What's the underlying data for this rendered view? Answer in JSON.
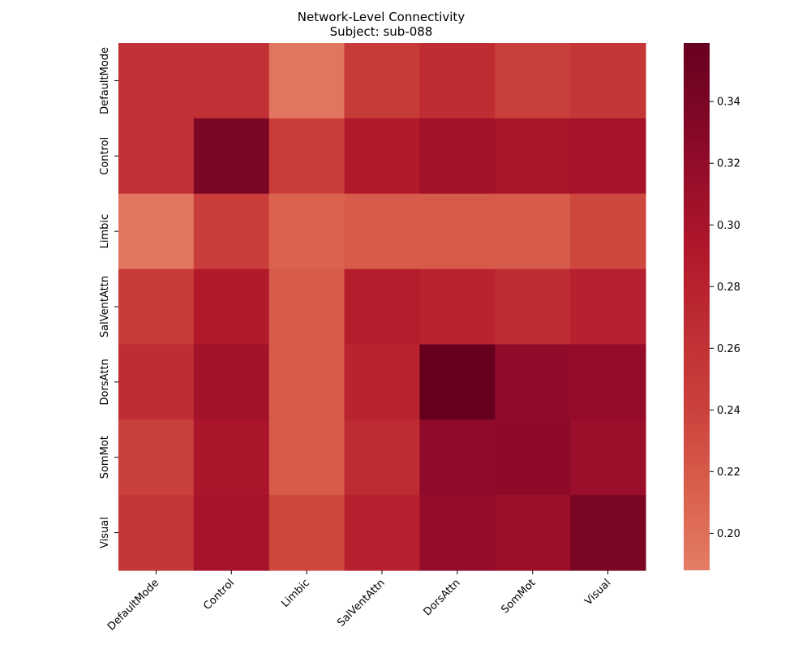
{
  "chart_data": {
    "type": "heatmap",
    "title": "Network-Level Connectivity",
    "subtitle": "Subject: sub-088",
    "xlabel": "",
    "ylabel": "",
    "x_categories": [
      "DefaultMode",
      "Control",
      "Limbic",
      "SalVentAttn",
      "DorsAttn",
      "SomMot",
      "Visual"
    ],
    "y_categories": [
      "DefaultMode",
      "Control",
      "Limbic",
      "SalVentAttn",
      "DorsAttn",
      "SomMot",
      "Visual"
    ],
    "values": [
      [
        0.262,
        0.262,
        0.195,
        0.25,
        0.266,
        0.243,
        0.253
      ],
      [
        0.262,
        0.339,
        0.245,
        0.29,
        0.305,
        0.298,
        0.302
      ],
      [
        0.195,
        0.245,
        0.212,
        0.218,
        0.218,
        0.218,
        0.234
      ],
      [
        0.25,
        0.29,
        0.218,
        0.285,
        0.278,
        0.268,
        0.281
      ],
      [
        0.266,
        0.305,
        0.218,
        0.278,
        0.359,
        0.322,
        0.318
      ],
      [
        0.243,
        0.298,
        0.218,
        0.268,
        0.322,
        0.324,
        0.312
      ],
      [
        0.253,
        0.302,
        0.234,
        0.281,
        0.318,
        0.312,
        0.34
      ]
    ],
    "colorbar": {
      "vmin": 0.188,
      "vmax": 0.359,
      "ticks": [
        0.2,
        0.22,
        0.24,
        0.26,
        0.28,
        0.3,
        0.32,
        0.34
      ],
      "tick_labels": [
        "0.20",
        "0.22",
        "0.24",
        "0.26",
        "0.28",
        "0.30",
        "0.32",
        "0.34"
      ],
      "colormap": "RdBu_r (upper half)",
      "color_low": "#e47d66",
      "color_high": "#67001f"
    },
    "grid": false,
    "legend": "colorbar-right"
  }
}
